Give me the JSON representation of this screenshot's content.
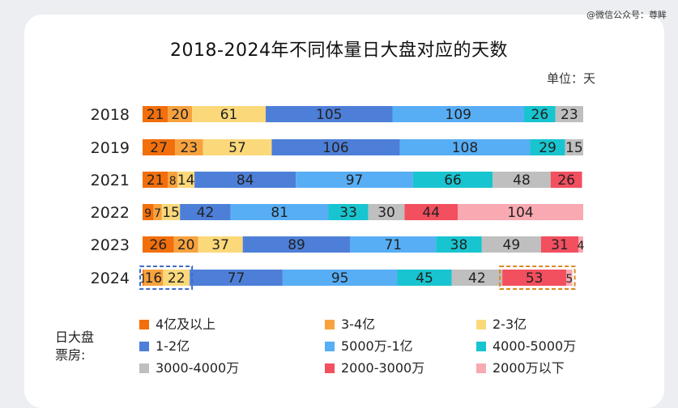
{
  "watermark": "@微信公众号：尊眸",
  "chart_data": {
    "type": "bar",
    "stacked": true,
    "orientation": "horizontal",
    "title": "2018-2024年不同体量日大盘对应的天数",
    "unit": "单位：天",
    "legend_title": "日大盘票房:",
    "categories": [
      "2018",
      "2019",
      "2021",
      "2022",
      "2023",
      "2024"
    ],
    "series": [
      {
        "name": "4亿及以上",
        "color": "#f26f0c",
        "values": [
          21,
          27,
          21,
          9,
          26,
          1
        ]
      },
      {
        "name": "3-4亿",
        "color": "#f8a23e",
        "values": [
          20,
          23,
          8,
          7,
          20,
          16
        ]
      },
      {
        "name": "2-3亿",
        "color": "#fbd97a",
        "values": [
          61,
          57,
          14,
          15,
          37,
          22
        ]
      },
      {
        "name": "1-2亿",
        "color": "#4d7fd8",
        "values": [
          105,
          106,
          84,
          42,
          89,
          77
        ]
      },
      {
        "name": "5000万-1亿",
        "color": "#57aef5",
        "values": [
          109,
          108,
          97,
          81,
          71,
          95
        ]
      },
      {
        "name": "4000-5000万",
        "color": "#18c4cf",
        "values": [
          26,
          29,
          66,
          33,
          38,
          45
        ]
      },
      {
        "name": "3000-4000万",
        "color": "#bfbfbf",
        "values": [
          23,
          15,
          48,
          30,
          49,
          42
        ]
      },
      {
        "name": "2000-3000万",
        "color": "#f24f5f",
        "values": [
          0,
          0,
          26,
          44,
          31,
          53
        ]
      },
      {
        "name": "2000万以下",
        "color": "#f8a9b1",
        "values": [
          0,
          0,
          0,
          104,
          4,
          5
        ]
      }
    ],
    "data_labels": [
      [
        "21",
        "20",
        "61",
        "105",
        "109",
        "26",
        "23",
        "",
        ""
      ],
      [
        "27",
        "23",
        "57",
        "106",
        "108",
        "29",
        "15",
        "",
        ""
      ],
      [
        "21",
        "8",
        "14",
        "84",
        "97",
        "66",
        "48",
        "26",
        ""
      ],
      [
        "9",
        "7",
        "15",
        "42",
        "81",
        "33",
        "30",
        "44",
        "104"
      ],
      [
        "26",
        "20",
        "37",
        "89",
        "71",
        "38",
        "49",
        "31",
        "4"
      ],
      [
        "1",
        "16",
        "22",
        "77",
        "95",
        "45",
        "42",
        "53",
        "5"
      ]
    ]
  }
}
